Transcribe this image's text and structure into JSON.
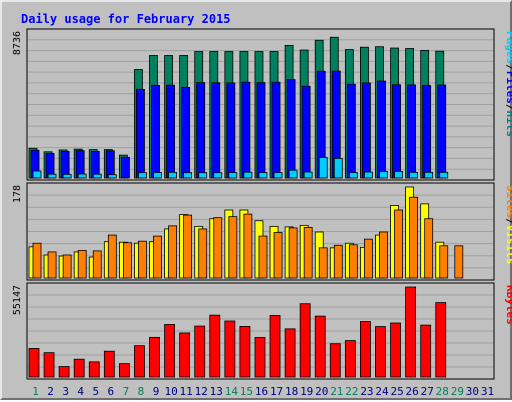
{
  "chart_data": {
    "type": "bar",
    "title": "Daily usage for February 2015",
    "days": [
      "1",
      "2",
      "3",
      "4",
      "5",
      "6",
      "7",
      "8",
      "9",
      "10",
      "11",
      "12",
      "13",
      "14",
      "15",
      "16",
      "17",
      "18",
      "19",
      "20",
      "21",
      "22",
      "23",
      "24",
      "25",
      "26",
      "27",
      "28",
      "29",
      "30",
      "31"
    ],
    "weekend_days": [
      "1",
      "7",
      "8",
      "14",
      "15",
      "21",
      "22",
      "28",
      "29"
    ],
    "panels": [
      {
        "id": "pages-files-hits",
        "ymax_label": "8736",
        "ymax": 8736,
        "legend": [
          "Pages",
          "/",
          "Files",
          "/",
          "Hits"
        ],
        "legend_colors": [
          "#00ccff",
          "#000000",
          "#0000ff",
          "#000000",
          "#008080"
        ],
        "series": [
          {
            "name": "Hits",
            "color": "#00805c",
            "values": [
              1790,
              1580,
              1690,
              1740,
              1710,
              1710,
              1380,
              6540,
              7380,
              7380,
              7380,
              7620,
              7620,
              7620,
              7620,
              7620,
              7620,
              7990,
              7710,
              8300,
              8480,
              7740,
              7880,
              7910,
              7830,
              7800,
              7690,
              7640,
              0,
              0,
              0
            ]
          },
          {
            "name": "Files",
            "color": "#0000ff",
            "values": [
              1670,
              1480,
              1600,
              1650,
              1600,
              1640,
              1250,
              5340,
              5580,
              5590,
              5460,
              5750,
              5740,
              5730,
              5770,
              5750,
              5770,
              5930,
              5530,
              6430,
              6440,
              5650,
              5730,
              5840,
              5620,
              5610,
              5570,
              5600,
              0,
              0,
              0
            ]
          },
          {
            "name": "Pages",
            "color": "#00ccff",
            "values": [
              420,
              230,
              220,
              240,
              230,
              200,
              0,
              320,
              330,
              340,
              320,
              320,
              320,
              330,
              350,
              330,
              330,
              470,
              360,
              1240,
              1180,
              330,
              360,
              400,
              400,
              340,
              340,
              340,
              0,
              0,
              0
            ]
          }
        ]
      },
      {
        "id": "sites-visits",
        "ymax_label": "178",
        "ymax": 178,
        "legend": [
          "Sites",
          "/",
          "Visits"
        ],
        "legend_colors": [
          "#ff8000",
          "#000000",
          "#ffff00"
        ],
        "series": [
          {
            "name": "Visits",
            "color": "#ffff00",
            "values": [
              61,
              45,
              43,
              51,
              41,
              71,
              70,
              68,
              71,
              96,
              124,
              101,
              116,
              133,
              133,
              112,
              101,
              100,
              103,
              90,
              59,
              68,
              60,
              84,
              142,
              178,
              145,
              70,
              0,
              0,
              0
            ]
          },
          {
            "name": "Sites",
            "color": "#ff8000",
            "values": [
              68,
              51,
              45,
              54,
              53,
              84,
              69,
              72,
              82,
              102,
              123,
              96,
              118,
              120,
              125,
              82,
              89,
              98,
              99,
              59,
              64,
              65,
              76,
              90,
              133,
              158,
              116,
              63,
              63,
              0,
              0
            ]
          }
        ]
      },
      {
        "id": "kbytes",
        "ymax_label": "55147",
        "ymax": 55147,
        "legend": [
          "KBytes"
        ],
        "legend_colors": [
          "#ff0000"
        ],
        "series": [
          {
            "name": "KBytes",
            "color": "#ff0000",
            "values": [
              17500,
              14900,
              6400,
              10900,
              9300,
              15800,
              8200,
              19200,
              24300,
              32200,
              27000,
              31200,
              37900,
              34300,
              31000,
              24200,
              37700,
              29500,
              44900,
              37300,
              20400,
              22300,
              34000,
              30900,
              33100,
              55147,
              31800,
              45600,
              0,
              0,
              0
            ]
          }
        ]
      }
    ],
    "colors": {
      "title": "#0000ff",
      "weekday_label": "#000080",
      "weekend_label": "#00805c",
      "background": "#c0c0c0",
      "grid": "#a0a0a0"
    }
  }
}
